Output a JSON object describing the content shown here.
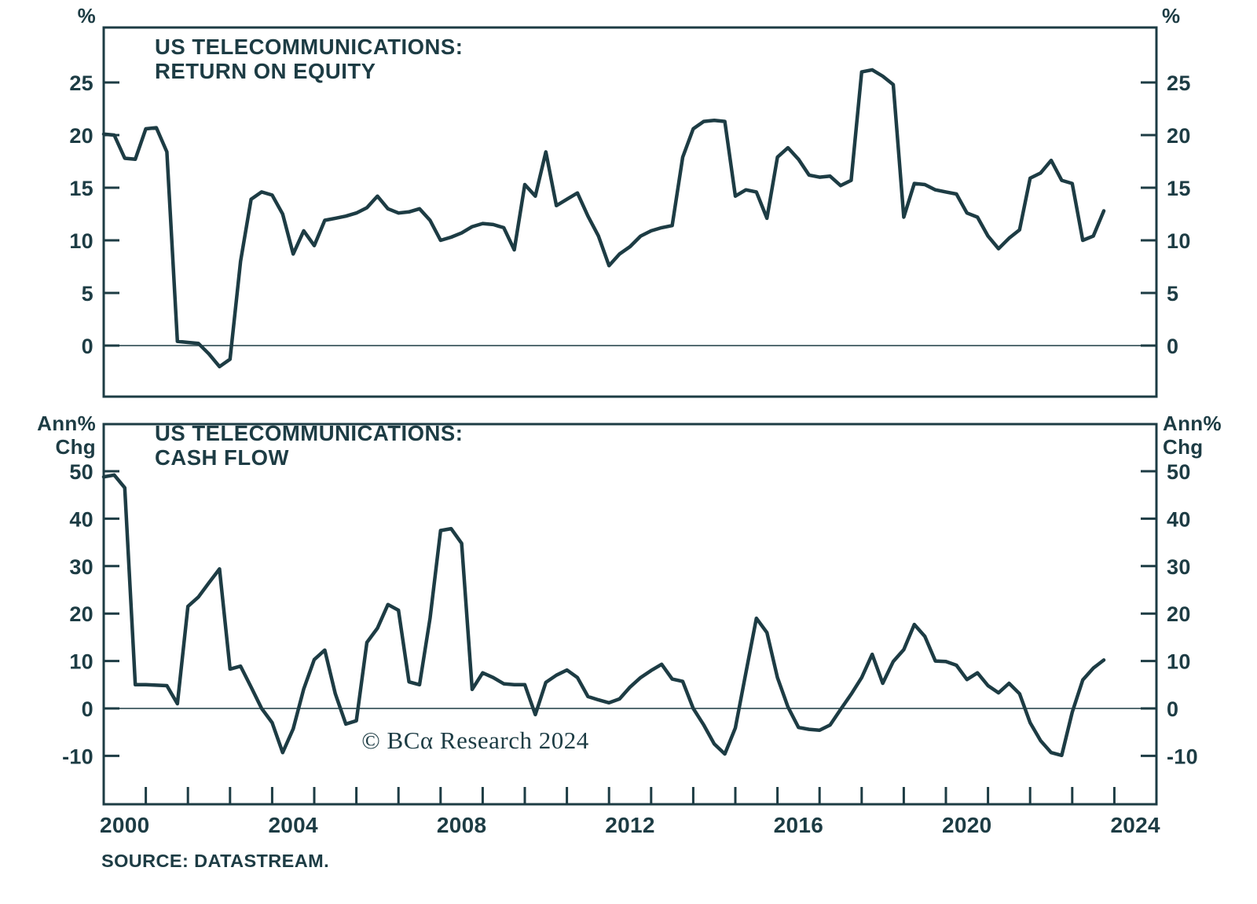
{
  "page": {
    "background": "#ffffff",
    "line_color": "#1d3c44",
    "text_color": "#1d3c44"
  },
  "copyright": "© BCα Research 2024",
  "source_note": "SOURCE: DATASTREAM.",
  "x_axis": {
    "range": [
      2000,
      2025
    ],
    "minor_tick_every_years": 1,
    "labels": [
      "2000",
      "2004",
      "2008",
      "2012",
      "2016",
      "2020",
      "2024"
    ]
  },
  "chart_data": [
    {
      "type": "line",
      "panel": "top",
      "title_line1": "US TELECOMMUNICATIONS:",
      "title_line2": "RETURN ON EQUITY",
      "unit_left": [
        "%"
      ],
      "unit_right": [
        "%"
      ],
      "xlabel": "",
      "ylabel": "%",
      "ylim": [
        -5,
        30
      ],
      "yticks": [
        0,
        5,
        10,
        15,
        20,
        25
      ],
      "zero_line": true,
      "grid": false,
      "legend": "none",
      "x_start": 2000.0,
      "x_step": 0.25,
      "values": [
        20.1,
        20.0,
        17.8,
        17.7,
        20.6,
        20.7,
        18.4,
        0.4,
        0.3,
        0.2,
        -0.8,
        -2.0,
        -1.3,
        8.0,
        13.9,
        14.6,
        14.3,
        12.5,
        8.7,
        10.9,
        9.5,
        11.9,
        12.1,
        12.3,
        12.6,
        13.1,
        14.2,
        13.0,
        12.6,
        12.7,
        13.0,
        11.9,
        10.0,
        10.3,
        10.7,
        11.3,
        11.6,
        11.5,
        11.2,
        9.1,
        15.3,
        14.2,
        18.4,
        13.3,
        13.9,
        14.5,
        12.3,
        10.4,
        7.6,
        8.7,
        9.4,
        10.4,
        10.9,
        11.2,
        11.4,
        17.9,
        20.6,
        21.3,
        21.4,
        21.3,
        14.2,
        14.8,
        14.6,
        12.1,
        17.9,
        18.8,
        17.7,
        16.2,
        16.0,
        16.1,
        15.2,
        15.7,
        26.0,
        26.2,
        25.6,
        24.8,
        12.2,
        15.4,
        15.3,
        14.8,
        14.6,
        14.4,
        12.6,
        12.2,
        10.4,
        9.2,
        10.2,
        11.0,
        15.9,
        16.4,
        17.6,
        15.7,
        15.4,
        10.0,
        10.4,
        12.8
      ]
    },
    {
      "type": "line",
      "panel": "bottom",
      "title_line1": "US TELECOMMUNICATIONS:",
      "title_line2": "CASH FLOW",
      "unit_left": [
        "Ann%",
        "Chg"
      ],
      "unit_right": [
        "Ann%",
        "Chg"
      ],
      "xlabel": "",
      "ylabel": "Ann% Chg",
      "ylim": [
        -20,
        60
      ],
      "yticks": [
        -10,
        0,
        10,
        20,
        30,
        40,
        50
      ],
      "zero_line": true,
      "grid": false,
      "legend": "none",
      "x_start": 2000.0,
      "x_step": 0.25,
      "values": [
        48.8,
        49.2,
        46.5,
        5.0,
        5.0,
        4.9,
        4.8,
        1.0,
        21.5,
        23.5,
        26.5,
        29.4,
        8.3,
        8.9,
        4.5,
        0.0,
        -3.0,
        -9.3,
        -4.3,
        4.1,
        10.3,
        12.3,
        3.1,
        -3.3,
        -2.6,
        13.9,
        16.9,
        21.9,
        20.7,
        5.6,
        5.0,
        19.0,
        37.5,
        37.9,
        34.8,
        4.0,
        7.5,
        6.5,
        5.2,
        5.0,
        5.0,
        -1.3,
        5.5,
        7.0,
        8.1,
        6.5,
        2.5,
        1.8,
        1.2,
        2.0,
        4.5,
        6.5,
        8.0,
        9.3,
        6.2,
        5.7,
        0.0,
        -3.5,
        -7.5,
        -9.6,
        -4.1,
        7.5,
        19.0,
        16.0,
        6.5,
        0.3,
        -4.0,
        -4.4,
        -4.6,
        -3.5,
        -0.2,
        3.0,
        6.5,
        11.4,
        5.3,
        9.9,
        12.4,
        17.7,
        15.2,
        10.0,
        9.9,
        9.1,
        6.1,
        7.5,
        4.8,
        3.3,
        5.3,
        3.1,
        -3.0,
        -6.8,
        -9.3,
        -9.9,
        -0.8,
        6.0,
        8.5,
        10.2
      ]
    }
  ]
}
